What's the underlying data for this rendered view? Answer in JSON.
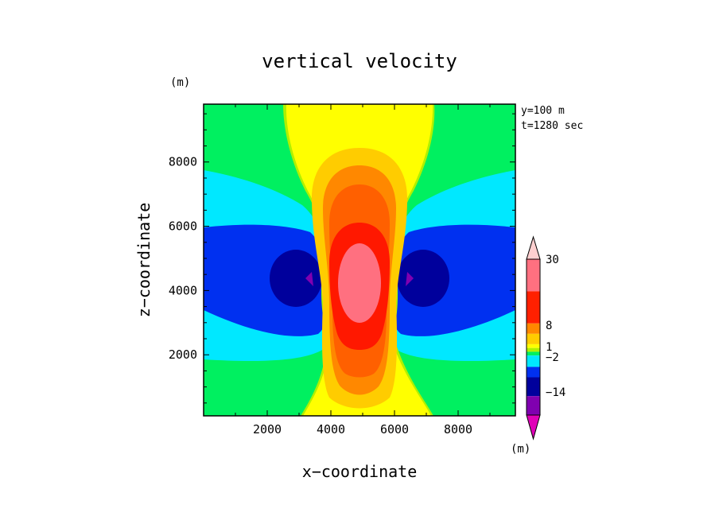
{
  "chart_data": {
    "type": "heatmap",
    "title": "vertical velocity",
    "xlabel": "x−coordinate",
    "ylabel": "z−coordinate",
    "x_unit": "(m)",
    "z_unit": "(m)",
    "colorbar_unit": "(m)",
    "annotations": [
      "y=100 m",
      "t=1280 sec"
    ],
    "xlim": [
      0,
      9800
    ],
    "ylim": [
      100,
      9800
    ],
    "xticks": [
      2000,
      4000,
      6000,
      8000
    ],
    "yticks": [
      2000,
      4000,
      6000,
      8000
    ],
    "xtick_labels": [
      "2000",
      "4000",
      "6000",
      "8000"
    ],
    "ytick_labels": [
      "2000",
      "4000",
      "6000",
      "8000"
    ],
    "grid": false,
    "colorbar": {
      "levels": [
        -14,
        -8,
        -2,
        -1,
        0,
        1,
        4,
        8,
        16,
        30
      ],
      "tick_labels": [
        "30",
        "8",
        "1",
        "−2",
        "−14"
      ],
      "colors": [
        "#e000b8",
        "#8000b0",
        "#00009c",
        "#0030f0",
        "#00e8ff",
        "#00f060",
        "#b0f000",
        "#ffff00",
        "#ffcc00",
        "#ff8800",
        "#ff2000",
        "#ff7080",
        "#ffd0d0"
      ]
    },
    "fields": {
      "background": {
        "label": "0 to 1",
        "color": "#00f060"
      },
      "updraft_core_max": {
        "value": 30,
        "x": 5000,
        "z": 4500
      },
      "downdraft_left_min": {
        "value": -14,
        "x": 3400,
        "z": 4400
      },
      "downdraft_right_min": {
        "value": -14,
        "x": 6600,
        "z": 4400
      }
    }
  }
}
